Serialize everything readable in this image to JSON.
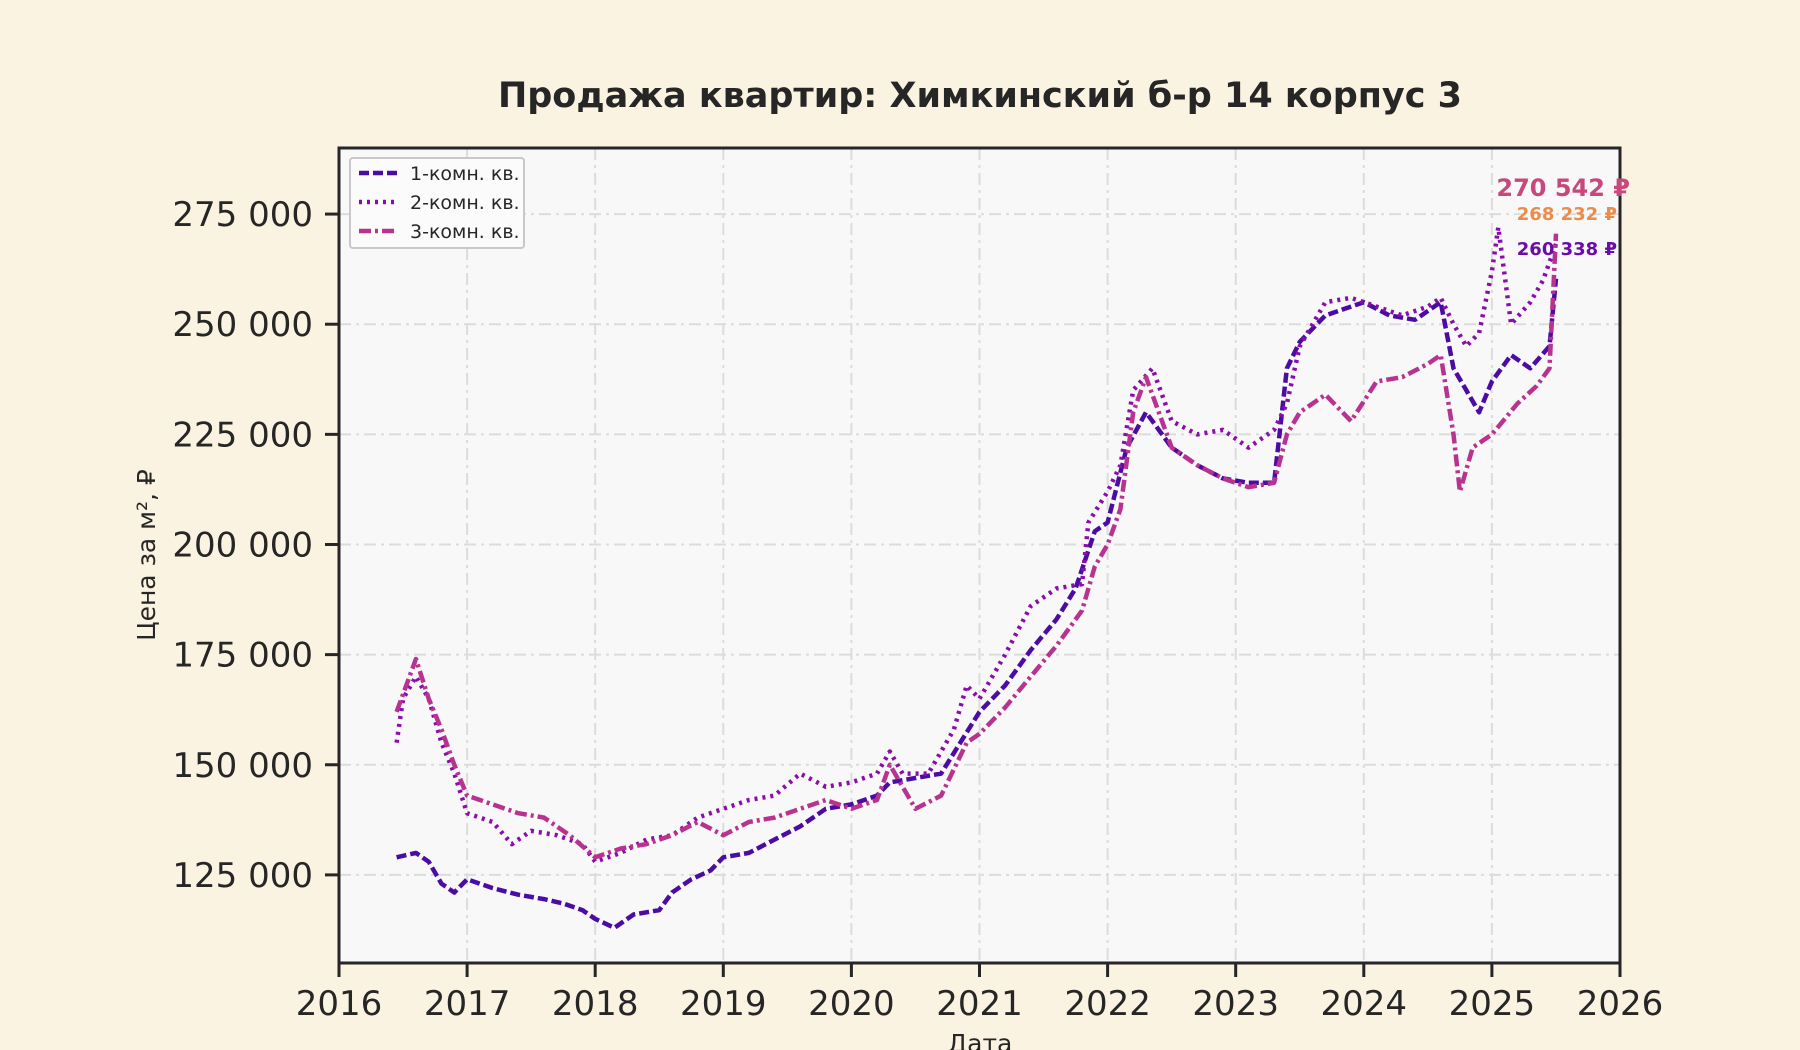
{
  "chart_data": {
    "type": "line",
    "title": "Продажа квартир: Химкинский б-р 14 корпус 3",
    "xlabel": "Дата",
    "ylabel": "Цена за м², ₽",
    "xlim": [
      2016.0,
      2026.0
    ],
    "ylim": [
      105000,
      290000
    ],
    "x_ticks": [
      2016,
      2017,
      2018,
      2019,
      2020,
      2021,
      2022,
      2023,
      2024,
      2025,
      2026
    ],
    "x_tick_labels": [
      "2016",
      "2017",
      "2018",
      "2019",
      "2020",
      "2021",
      "2022",
      "2023",
      "2024",
      "2025",
      "2026"
    ],
    "y_ticks": [
      125000,
      150000,
      175000,
      200000,
      225000,
      250000,
      275000
    ],
    "y_tick_labels": [
      "125 000",
      "150 000",
      "175 000",
      "200 000",
      "225 000",
      "250 000",
      "275 000"
    ],
    "grid": true,
    "legend_position": "top-left",
    "series": [
      {
        "name": "1-комн. кв.",
        "color": "#4b0ca4",
        "style": "dashed",
        "end_label": "260 338 ₽",
        "end_label_color": "#6a0ca8",
        "points": [
          [
            2016.45,
            129000
          ],
          [
            2016.6,
            130000
          ],
          [
            2016.7,
            128000
          ],
          [
            2016.8,
            123000
          ],
          [
            2016.9,
            121000
          ],
          [
            2017.0,
            124000
          ],
          [
            2017.2,
            122000
          ],
          [
            2017.4,
            120500
          ],
          [
            2017.6,
            119500
          ],
          [
            2017.75,
            118500
          ],
          [
            2017.9,
            117000
          ],
          [
            2018.0,
            115000
          ],
          [
            2018.15,
            113000
          ],
          [
            2018.3,
            116000
          ],
          [
            2018.5,
            117000
          ],
          [
            2018.6,
            121000
          ],
          [
            2018.75,
            124000
          ],
          [
            2018.9,
            126000
          ],
          [
            2019.0,
            129000
          ],
          [
            2019.2,
            130000
          ],
          [
            2019.4,
            133000
          ],
          [
            2019.6,
            136000
          ],
          [
            2019.8,
            140000
          ],
          [
            2020.0,
            141000
          ],
          [
            2020.2,
            143000
          ],
          [
            2020.3,
            146000
          ],
          [
            2020.5,
            147000
          ],
          [
            2020.7,
            148000
          ],
          [
            2020.85,
            155000
          ],
          [
            2021.0,
            162000
          ],
          [
            2021.2,
            168000
          ],
          [
            2021.4,
            176000
          ],
          [
            2021.6,
            183000
          ],
          [
            2021.75,
            190000
          ],
          [
            2021.9,
            203000
          ],
          [
            2022.0,
            205000
          ],
          [
            2022.15,
            222000
          ],
          [
            2022.3,
            230000
          ],
          [
            2022.5,
            222000
          ],
          [
            2022.7,
            218000
          ],
          [
            2022.9,
            215000
          ],
          [
            2023.1,
            214000
          ],
          [
            2023.3,
            214000
          ],
          [
            2023.4,
            240000
          ],
          [
            2023.5,
            246000
          ],
          [
            2023.7,
            252000
          ],
          [
            2023.9,
            254000
          ],
          [
            2024.0,
            255000
          ],
          [
            2024.2,
            252000
          ],
          [
            2024.4,
            251000
          ],
          [
            2024.6,
            255000
          ],
          [
            2024.7,
            240000
          ],
          [
            2024.8,
            235000
          ],
          [
            2024.9,
            230000
          ],
          [
            2025.0,
            237000
          ],
          [
            2025.15,
            243000
          ],
          [
            2025.3,
            240000
          ],
          [
            2025.45,
            245000
          ],
          [
            2025.5,
            260338
          ]
        ]
      },
      {
        "name": "2-комн. кв.",
        "color": "#8a0dab",
        "style": "dotted",
        "end_label": "268 232 ₽",
        "end_label_color": "#eb8c4a",
        "points": [
          [
            2016.45,
            155000
          ],
          [
            2016.5,
            165000
          ],
          [
            2016.6,
            170000
          ],
          [
            2016.7,
            165000
          ],
          [
            2016.8,
            155000
          ],
          [
            2016.9,
            148000
          ],
          [
            2017.0,
            139000
          ],
          [
            2017.2,
            137000
          ],
          [
            2017.35,
            132000
          ],
          [
            2017.5,
            135000
          ],
          [
            2017.7,
            134000
          ],
          [
            2017.9,
            132000
          ],
          [
            2018.0,
            128000
          ],
          [
            2018.2,
            130000
          ],
          [
            2018.4,
            133000
          ],
          [
            2018.6,
            134000
          ],
          [
            2018.8,
            138000
          ],
          [
            2019.0,
            140000
          ],
          [
            2019.2,
            142000
          ],
          [
            2019.4,
            143000
          ],
          [
            2019.6,
            148000
          ],
          [
            2019.8,
            145000
          ],
          [
            2020.0,
            146000
          ],
          [
            2020.2,
            148000
          ],
          [
            2020.3,
            153000
          ],
          [
            2020.4,
            148000
          ],
          [
            2020.6,
            148000
          ],
          [
            2020.8,
            158000
          ],
          [
            2020.9,
            168000
          ],
          [
            2021.0,
            165000
          ],
          [
            2021.2,
            175000
          ],
          [
            2021.4,
            186000
          ],
          [
            2021.6,
            190000
          ],
          [
            2021.8,
            191000
          ],
          [
            2021.85,
            205000
          ],
          [
            2022.0,
            212000
          ],
          [
            2022.1,
            218000
          ],
          [
            2022.2,
            235000
          ],
          [
            2022.35,
            240000
          ],
          [
            2022.5,
            228000
          ],
          [
            2022.7,
            225000
          ],
          [
            2022.9,
            226000
          ],
          [
            2023.1,
            222000
          ],
          [
            2023.3,
            226000
          ],
          [
            2023.4,
            232000
          ],
          [
            2023.5,
            245000
          ],
          [
            2023.7,
            255000
          ],
          [
            2023.9,
            256000
          ],
          [
            2024.1,
            254000
          ],
          [
            2024.3,
            252000
          ],
          [
            2024.5,
            254000
          ],
          [
            2024.6,
            256000
          ],
          [
            2024.7,
            250000
          ],
          [
            2024.8,
            245000
          ],
          [
            2024.9,
            248000
          ],
          [
            2025.0,
            262000
          ],
          [
            2025.05,
            272000
          ],
          [
            2025.15,
            250000
          ],
          [
            2025.3,
            255000
          ],
          [
            2025.4,
            260000
          ],
          [
            2025.5,
            268232
          ]
        ]
      },
      {
        "name": "3-комн. кв.",
        "color": "#b83390",
        "style": "dashdot",
        "end_label": "270 542 ₽",
        "end_label_color": "#c8487d",
        "points": [
          [
            2016.45,
            162000
          ],
          [
            2016.55,
            170000
          ],
          [
            2016.6,
            174000
          ],
          [
            2016.7,
            165000
          ],
          [
            2016.8,
            158000
          ],
          [
            2016.9,
            150000
          ],
          [
            2017.0,
            143000
          ],
          [
            2017.2,
            141000
          ],
          [
            2017.4,
            139000
          ],
          [
            2017.6,
            138000
          ],
          [
            2017.8,
            134000
          ],
          [
            2018.0,
            129000
          ],
          [
            2018.2,
            131000
          ],
          [
            2018.4,
            132000
          ],
          [
            2018.6,
            134000
          ],
          [
            2018.8,
            137000
          ],
          [
            2019.0,
            134000
          ],
          [
            2019.2,
            137000
          ],
          [
            2019.4,
            138000
          ],
          [
            2019.6,
            140000
          ],
          [
            2019.8,
            142000
          ],
          [
            2020.0,
            140000
          ],
          [
            2020.2,
            142000
          ],
          [
            2020.3,
            150000
          ],
          [
            2020.4,
            145000
          ],
          [
            2020.5,
            140000
          ],
          [
            2020.7,
            143000
          ],
          [
            2020.9,
            155000
          ],
          [
            2021.0,
            157000
          ],
          [
            2021.2,
            163000
          ],
          [
            2021.4,
            170000
          ],
          [
            2021.6,
            177000
          ],
          [
            2021.8,
            185000
          ],
          [
            2021.9,
            195000
          ],
          [
            2022.0,
            200000
          ],
          [
            2022.1,
            208000
          ],
          [
            2022.2,
            230000
          ],
          [
            2022.3,
            238000
          ],
          [
            2022.4,
            230000
          ],
          [
            2022.5,
            222000
          ],
          [
            2022.7,
            218000
          ],
          [
            2022.9,
            215000
          ],
          [
            2023.1,
            213000
          ],
          [
            2023.3,
            214000
          ],
          [
            2023.4,
            225000
          ],
          [
            2023.5,
            230000
          ],
          [
            2023.7,
            234000
          ],
          [
            2023.9,
            228000
          ],
          [
            2024.1,
            237000
          ],
          [
            2024.3,
            238000
          ],
          [
            2024.5,
            241000
          ],
          [
            2024.6,
            243000
          ],
          [
            2024.7,
            225000
          ],
          [
            2024.75,
            212000
          ],
          [
            2024.85,
            222000
          ],
          [
            2025.0,
            225000
          ],
          [
            2025.2,
            232000
          ],
          [
            2025.35,
            236000
          ],
          [
            2025.45,
            240000
          ],
          [
            2025.5,
            270542
          ]
        ]
      }
    ]
  }
}
